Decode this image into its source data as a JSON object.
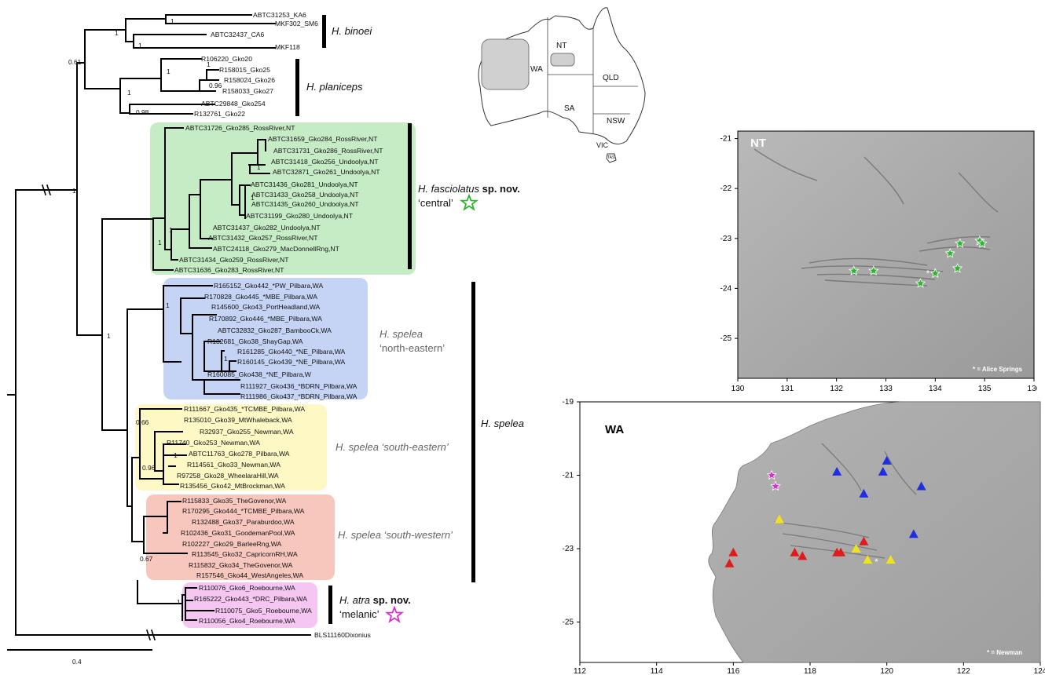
{
  "tree": {
    "scale_label": "0.4",
    "tips": [
      "ABTC31253_KA6",
      "MKF302_SM6",
      "ABTC32437_CA6",
      "MKF118",
      "R106220_Gko20",
      "R158015_Gko25",
      "R158024_Gko26",
      "R158033_Gko27",
      "ABTC29848_Gko254",
      "R132761_Gko22",
      "ABTC31726_Gko285_RossRiver,NT",
      "ABTC31659_Gko284_RossRiver,NT",
      "ABTC31731_Gko286_RossRiver,NT",
      "ABTC31418_Gko256_Undoolya,NT",
      "ABTC32871_Gko261_Undoolya,NT",
      "ABTC31436_Gko281_Undoolya,NT",
      "ABTC31433_Gko258_Undoolya,NT",
      "ABTC31435_Gko260_Undoolya,NT",
      "ABTC31199_Gko280_Undoolya,NT",
      "ABTC31437_Gko282_Undoolya,NT",
      "ABTC31432_Gko257_RossRiver,NT",
      "ABTC24118_Gko279_MacDonnellRng,NT",
      "ABTC31434_Gko259_RossRiver,NT",
      "ABTC31636_Gko283_RossRiver,NT",
      "R165152_Gko442_*PW_Pilbara,WA",
      "R170828_Gko445_*MBE_Pilbara,WA",
      "R145600_Gko43_PortHeadland,WA",
      "R170892_Gko446_*MBE_Pilbara,WA",
      "ABTC32832_Gko287_BambooCk,WA",
      "R132681_Gko38_ShayGap,WA",
      "R161285_Gko440_*NE_Pilbara,WA",
      "R160145_Gko439_*NE_Pilbara,WA",
      "R160085_Gko438_*NE_Pilbara,W",
      "R111927_Gko436_*BDRN_Pilbara,WA",
      "R111986_Gko437_*BDRN_Pilbara,WA",
      "R111667_Gko435_*TCMBE_Pilbara,WA",
      "R135010_Gko39_MtWhaleback,WA",
      "R32937_Gko255_Newman,WA",
      "R11740_Gko253_Newman,WA",
      "ABTC11763_Gko278_Pilbara,WA",
      "R114561_Gko33_Newman,WA",
      "R97258_Gko28_WheelaraHill,WA",
      "R135456_Gko42_MtBrockman,WA",
      "R115833_Gko35_TheGovenor,WA",
      "R170295_Gko444_*TCMBE_Pilbara,WA",
      "R132488_Gko37_Paraburdoo,WA",
      "R102436_Gko31_GoodemanPool,WA",
      "R102227_Gko29_BarleeRng,WA",
      "R113545_Gko32_CapricornRH,WA",
      "R115832_Gko34_TheGovenor,WA",
      "R157546_Gko44_WestAngeles,WA",
      "R110076_Gko6_Roebourne,WA",
      "R165222_Gko443_*DRC_Pilbara,WA",
      "R110075_Gko5_Roebourne,WA",
      "R110056_Gko4_Roebourne,WA",
      "BLS11160Dixonius"
    ],
    "supports": [
      "1",
      "1",
      "1",
      "0.61",
      "1",
      "1",
      "0.96",
      "1",
      "0.98",
      "1",
      "1",
      "1",
      "1",
      "1",
      "1",
      "1",
      "1",
      "0.66",
      "0.96",
      "1",
      "0.67",
      "1"
    ],
    "clades": {
      "binoei": "H. binoei",
      "planiceps": "H. planiceps",
      "fasciolatus_italic": "H. fasciolatus",
      "fasciolatus_bold": " sp. nov.",
      "fasciolatus_sub": "‘central’",
      "spelea_ne_italic": "H. spelea",
      "spelea_ne_sub": "‘north-eastern’",
      "spelea_se": "H. spelea ‘south-eastern’",
      "spelea_sw": "H. spelea ‘south-western’",
      "spelea": "H. spelea",
      "atra_italic": "H. atra",
      "atra_bold": " sp. nov.",
      "atra_sub": "‘melanic’"
    },
    "colors": {
      "green_box": "#c6ecc6",
      "blue_box": "#c5d3f5",
      "yellow_box": "#fdf8c4",
      "red_box": "#f7c7bd",
      "pink_box": "#f5c6f2",
      "green_star": "#2db52d",
      "pink_star": "#d92ed1"
    }
  },
  "aus_map": {
    "labels": {
      "wa": "WA",
      "nt": "NT",
      "qld": "QLD",
      "sa": "SA",
      "nsw": "NSW",
      "vic": "VIC",
      "tas": "TAS"
    }
  },
  "nt_map": {
    "title": "NT",
    "note": "* = Alice Springs",
    "x_ticks": [
      "130",
      "131",
      "132",
      "133",
      "134",
      "135",
      "136"
    ],
    "y_ticks": [
      "-21",
      "-22",
      "-23",
      "-24",
      "-25"
    ],
    "points_lonlat": [
      [
        132.35,
        -23.65
      ],
      [
        132.75,
        -23.65
      ],
      [
        133.7,
        -23.9
      ],
      [
        134.0,
        -23.7
      ],
      [
        134.3,
        -23.3
      ],
      [
        134.5,
        -23.1
      ],
      [
        134.45,
        -23.6
      ],
      [
        134.9,
        -23.05
      ],
      [
        134.95,
        -23.1
      ]
    ],
    "town": [
      133.85,
      -23.7
    ]
  },
  "wa_map": {
    "title": "WA",
    "note": "* = Newman",
    "x_ticks": [
      "112",
      "114",
      "116",
      "118",
      "120",
      "122",
      "124"
    ],
    "y_ticks": [
      "-19",
      "-21",
      "-23",
      "-25"
    ],
    "blue_lonlat": [
      [
        118.7,
        -20.9
      ],
      [
        119.4,
        -21.5
      ],
      [
        119.9,
        -20.9
      ],
      [
        120.0,
        -20.6
      ],
      [
        120.9,
        -21.3
      ],
      [
        120.7,
        -22.6
      ]
    ],
    "yellow_lonlat": [
      [
        117.2,
        -22.2
      ],
      [
        119.2,
        -23.0
      ],
      [
        119.5,
        -23.3
      ],
      [
        120.1,
        -23.3
      ]
    ],
    "red_lonlat": [
      [
        115.9,
        -23.4
      ],
      [
        116.0,
        -23.1
      ],
      [
        117.6,
        -23.1
      ],
      [
        117.8,
        -23.2
      ],
      [
        118.7,
        -23.1
      ],
      [
        118.8,
        -23.1
      ],
      [
        119.4,
        -22.8
      ]
    ],
    "pink_lonlat": [
      [
        117.0,
        -21.0
      ],
      [
        117.1,
        -21.3
      ]
    ],
    "town": [
      119.73,
      -23.36
    ]
  }
}
